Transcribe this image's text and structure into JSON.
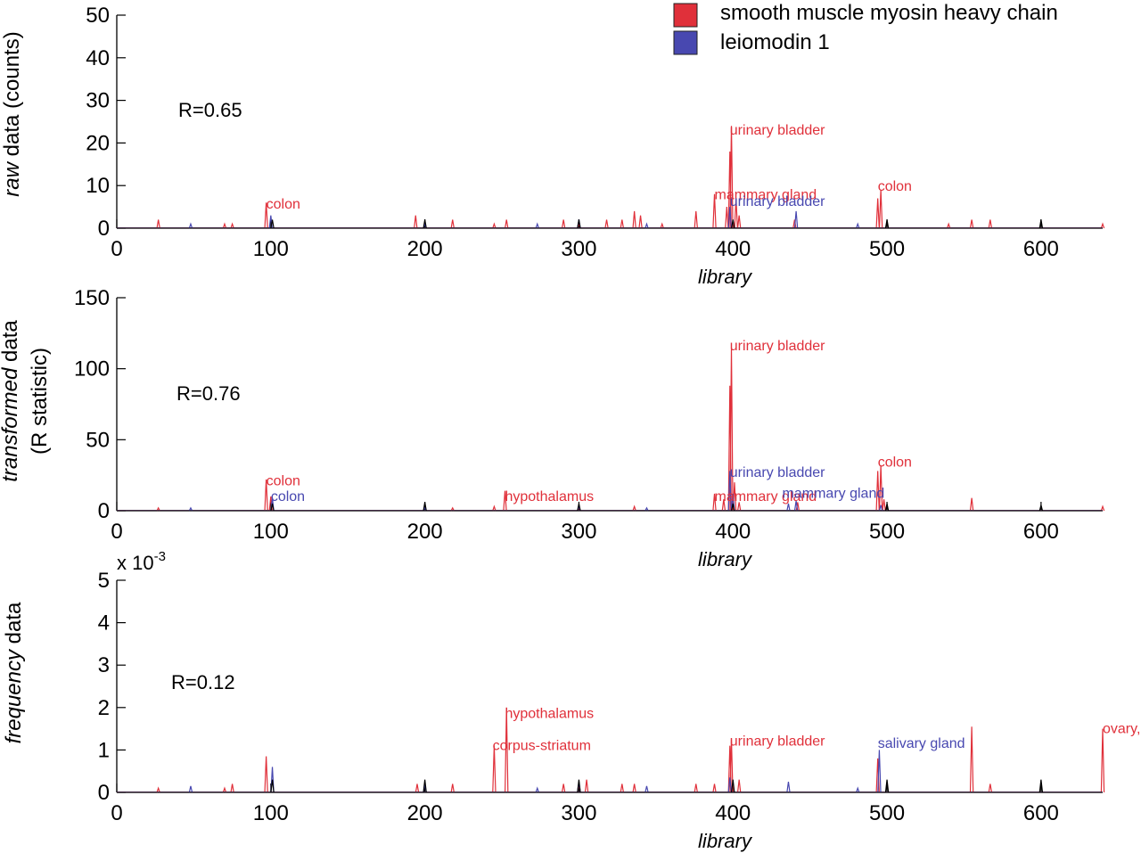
{
  "colors": {
    "red": "#e0303a",
    "blue": "#4848b0",
    "black": "#000000"
  },
  "legend": [
    {
      "name": "smooth muscle myosin heavy chain",
      "color": "#e0303a"
    },
    {
      "name": "leiomodin 1",
      "color": "#4848b0"
    }
  ],
  "chart_data": [
    {
      "type": "line",
      "ylabel": {
        "italic": "raw",
        "rest": " data (counts)"
      },
      "xlabel": "library",
      "xlim": [
        0,
        640
      ],
      "ylim": [
        0,
        50
      ],
      "xticks": [
        "0",
        "100",
        "200",
        "300",
        "400",
        "500",
        "600"
      ],
      "yticks": [
        "0",
        "10",
        "20",
        "30",
        "40",
        "50"
      ],
      "r_label": "R=0.65",
      "series": [
        {
          "name": "smooth muscle myosin heavy chain",
          "color": "#e0303a",
          "peaks": [
            [
              27,
              2
            ],
            [
              70,
              1
            ],
            [
              75,
              1
            ],
            [
              97,
              6
            ],
            [
              194,
              3
            ],
            [
              218,
              2
            ],
            [
              245,
              1
            ],
            [
              253,
              2
            ],
            [
              290,
              2
            ],
            [
              300,
              1
            ],
            [
              318,
              2
            ],
            [
              328,
              2
            ],
            [
              336,
              4
            ],
            [
              340,
              3
            ],
            [
              354,
              1
            ],
            [
              376,
              4
            ],
            [
              388,
              8
            ],
            [
              396,
              5
            ],
            [
              398,
              18
            ],
            [
              399,
              24
            ],
            [
              402,
              7
            ],
            [
              404,
              3
            ],
            [
              440,
              2
            ],
            [
              494,
              7
            ],
            [
              496,
              9
            ],
            [
              540,
              1
            ],
            [
              555,
              2
            ],
            [
              567,
              2
            ],
            [
              640,
              1
            ]
          ]
        },
        {
          "name": "leiomodin 1",
          "color": "#4848b0",
          "peaks": [
            [
              48,
              1
            ],
            [
              100,
              3
            ],
            [
              200,
              1
            ],
            [
              273,
              1
            ],
            [
              300,
              2
            ],
            [
              344,
              1
            ],
            [
              398,
              5
            ],
            [
              441,
              4
            ],
            [
              481,
              1
            ]
          ]
        },
        {
          "name": "",
          "color": "#000000",
          "peaks": [
            [
              101,
              2
            ],
            [
              200,
              2
            ],
            [
              300,
              2
            ],
            [
              400,
              2
            ],
            [
              500,
              2
            ],
            [
              600,
              2
            ]
          ]
        }
      ],
      "annotations": [
        {
          "text": "colon",
          "x": 97,
          "y": 4.6,
          "color": "#e0303a"
        },
        {
          "text": "urinary bladder",
          "x": 398,
          "y": 22,
          "color": "#e0303a"
        },
        {
          "text": "mammary gland",
          "x": 388,
          "y": 6.8,
          "color": "#e0303a"
        },
        {
          "text": "urinary bladder",
          "x": 398,
          "y": 5.2,
          "color": "#4848b0"
        },
        {
          "text": "colon",
          "x": 494,
          "y": 8.8,
          "color": "#e0303a"
        }
      ]
    },
    {
      "type": "line",
      "ylabel": {
        "italic": "transformed",
        "rest": " data",
        "line2": "(R statistic)"
      },
      "xlabel": "library",
      "xlim": [
        0,
        640
      ],
      "ylim": [
        0,
        150
      ],
      "xticks": [
        "0",
        "100",
        "200",
        "300",
        "400",
        "500",
        "600"
      ],
      "yticks": [
        "0",
        "50",
        "100",
        "150"
      ],
      "r_label": "R=0.76",
      "series": [
        {
          "name": "smooth muscle myosin heavy chain",
          "color": "#e0303a",
          "peaks": [
            [
              27,
              2
            ],
            [
              97,
              22
            ],
            [
              100,
              10
            ],
            [
              218,
              2
            ],
            [
              245,
              3
            ],
            [
              252,
              14
            ],
            [
              300,
              2
            ],
            [
              336,
              3
            ],
            [
              388,
              12
            ],
            [
              394,
              8
            ],
            [
              398,
              88
            ],
            [
              399,
              115
            ],
            [
              401,
              20
            ],
            [
              404,
              6
            ],
            [
              442,
              6
            ],
            [
              494,
              28
            ],
            [
              496,
              32
            ],
            [
              498,
              8
            ],
            [
              555,
              9
            ],
            [
              640,
              3
            ]
          ]
        },
        {
          "name": "leiomodin 1",
          "color": "#4848b0",
          "peaks": [
            [
              48,
              2
            ],
            [
              101,
              9
            ],
            [
              200,
              2
            ],
            [
              300,
              3
            ],
            [
              344,
              2
            ],
            [
              398,
              28
            ],
            [
              400,
              12
            ],
            [
              436,
              5
            ],
            [
              441,
              7
            ],
            [
              496,
              4
            ]
          ]
        },
        {
          "name": "",
          "color": "#000000",
          "peaks": [
            [
              101,
              5
            ],
            [
              200,
              6
            ],
            [
              300,
              5
            ],
            [
              400,
              5
            ],
            [
              500,
              5
            ],
            [
              600,
              4
            ]
          ]
        }
      ],
      "annotations": [
        {
          "text": "colon",
          "x": 97,
          "y": 18,
          "color": "#e0303a"
        },
        {
          "text": "colon",
          "x": 100,
          "y": 7,
          "color": "#4848b0"
        },
        {
          "text": "hypothalamus",
          "x": 252,
          "y": 7,
          "color": "#e0303a"
        },
        {
          "text": "urinary bladder",
          "x": 398,
          "y": 113,
          "color": "#e0303a"
        },
        {
          "text": "urinary bladder",
          "x": 398,
          "y": 24,
          "color": "#4848b0"
        },
        {
          "text": "mammary gland",
          "x": 388,
          "y": 7,
          "color": "#e0303a"
        },
        {
          "text": "mammary gland",
          "x": 432,
          "y": 9,
          "color": "#4848b0"
        },
        {
          "text": "colon",
          "x": 494,
          "y": 31,
          "color": "#e0303a"
        }
      ]
    },
    {
      "type": "line",
      "ylabel": {
        "italic": "frequency",
        "rest": " data"
      },
      "xlabel": "library",
      "xlim": [
        0,
        640
      ],
      "ylim": [
        0,
        5
      ],
      "xticks": [
        "0",
        "100",
        "200",
        "300",
        "400",
        "500",
        "600"
      ],
      "yticks": [
        "0",
        "1",
        "2",
        "3",
        "4",
        "5"
      ],
      "yexponent": {
        "base": "x 10",
        "power": "-3"
      },
      "r_label": "R=0.12",
      "series": [
        {
          "name": "smooth muscle myosin heavy chain",
          "color": "#e0303a",
          "peaks": [
            [
              27,
              0.1
            ],
            [
              70,
              0.1
            ],
            [
              75,
              0.2
            ],
            [
              97,
              0.85
            ],
            [
              195,
              0.2
            ],
            [
              218,
              0.2
            ],
            [
              245,
              1.1
            ],
            [
              253,
              2.0
            ],
            [
              290,
              0.2
            ],
            [
              300,
              0.2
            ],
            [
              305,
              0.3
            ],
            [
              328,
              0.2
            ],
            [
              336,
              0.2
            ],
            [
              376,
              0.2
            ],
            [
              388,
              0.2
            ],
            [
              398,
              1.1
            ],
            [
              399,
              1.25
            ],
            [
              404,
              0.3
            ],
            [
              494,
              0.8
            ],
            [
              555,
              1.55
            ],
            [
              567,
              0.2
            ],
            [
              640,
              1.5
            ]
          ]
        },
        {
          "name": "leiomodin 1",
          "color": "#4848b0",
          "peaks": [
            [
              48,
              0.15
            ],
            [
              101,
              0.6
            ],
            [
              200,
              0.2
            ],
            [
              273,
              0.1
            ],
            [
              300,
              0.25
            ],
            [
              344,
              0.15
            ],
            [
              398,
              0.35
            ],
            [
              436,
              0.25
            ],
            [
              481,
              0.1
            ],
            [
              495,
              1.0
            ]
          ]
        },
        {
          "name": "",
          "color": "#000000",
          "peaks": [
            [
              101,
              0.3
            ],
            [
              200,
              0.3
            ],
            [
              300,
              0.3
            ],
            [
              400,
              0.3
            ],
            [
              500,
              0.3
            ],
            [
              600,
              0.3
            ]
          ]
        }
      ],
      "annotations": [
        {
          "text": "hypothalamus",
          "x": 252,
          "y": 1.75,
          "color": "#e0303a"
        },
        {
          "text": "corpus-striatum",
          "x": 244,
          "y": 1.0,
          "color": "#e0303a"
        },
        {
          "text": "urinary bladder",
          "x": 398,
          "y": 1.1,
          "color": "#e0303a"
        },
        {
          "text": "salivary gland",
          "x": 494,
          "y": 1.05,
          "color": "#4848b0"
        },
        {
          "text": "ovary,",
          "x": 640,
          "y": 1.4,
          "color": "#e0303a"
        }
      ]
    }
  ]
}
